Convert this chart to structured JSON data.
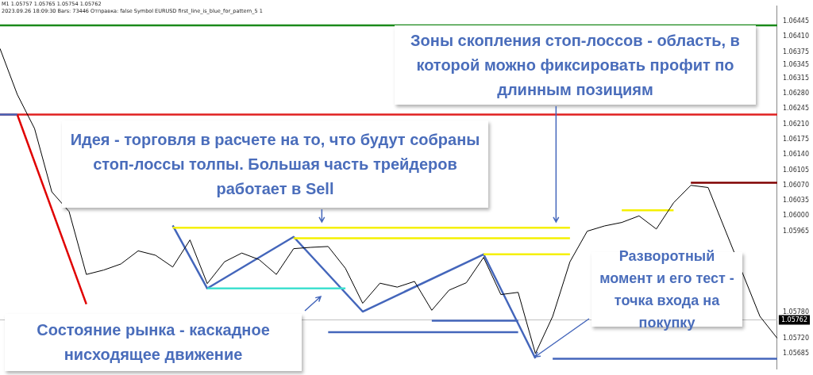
{
  "chart_data": {
    "type": "line",
    "ylim": [
      1.0565,
      1.0648
    ],
    "categories": [
      null,
      null,
      null,
      null,
      null,
      null,
      null,
      null,
      null,
      null,
      null,
      null,
      null,
      null,
      null,
      null,
      null,
      null,
      null,
      null,
      null,
      null,
      null,
      null,
      null,
      null,
      null,
      null,
      null,
      null,
      null,
      null,
      null,
      null,
      null,
      null,
      null,
      null,
      null,
      null,
      null,
      null,
      null,
      null,
      null,
      null
    ],
    "yticks": [
      1.06445,
      {
        "value": 1.0641,
        "label": "1.06410"
      },
      1.06375,
      1.06345,
      1.06315,
      {
        "value": 1.0628,
        "label": "1.06280"
      },
      1.06245,
      {
        "value": 1.0621,
        "label": "1.06210"
      },
      1.06175,
      {
        "value": 1.0614,
        "label": "1.06140"
      },
      1.06105,
      {
        "value": 1.0607,
        "label": "1.06070"
      },
      1.06035,
      {
        "value": 1.06,
        "label": "1.06000"
      },
      1.05965,
      {
        "value": 1.0578,
        "label": "1.05780"
      },
      {
        "value": 1.0572,
        "label": "1.05720"
      },
      1.05685
    ],
    "tick_labels": "y",
    "grid": false,
    "legend": false,
    "marker": "none",
    "line_style": "solid",
    "series": [
      {
        "color": "#000000",
        "values": [
          1.06383,
          1.06278,
          1.062,
          1.06055,
          1.0601,
          1.05866,
          1.05876,
          1.0589,
          1.0592,
          1.0591,
          1.05883,
          1.05945,
          1.05845,
          1.05895,
          1.05915,
          1.059,
          1.05866,
          1.05925,
          1.05928,
          1.0593,
          1.0588,
          1.058,
          1.05846,
          1.05837,
          1.0585,
          1.05784,
          1.0583,
          1.05847,
          1.05905,
          1.0582,
          1.05825,
          1.05685,
          1.0577,
          1.05895,
          1.05965,
          1.05977,
          1.05985,
          1.06,
          1.0597,
          1.0603,
          1.0607,
          1.06065,
          null,
          null,
          1.0577,
          1.0572
        ]
      },
      {
        "color": "#4466bb",
        "values": [
          1.06232,
          1.06232,
          null,
          null,
          null,
          null,
          null,
          null,
          null,
          null,
          null,
          null,
          null,
          null,
          null,
          null,
          null,
          null,
          null,
          null,
          null,
          null,
          null,
          null,
          null,
          null,
          null,
          null,
          null,
          null,
          null,
          null,
          null,
          null,
          null,
          null,
          null,
          null,
          null,
          null,
          null,
          null,
          null,
          null,
          null,
          null
        ]
      },
      {
        "color": "#e00000",
        "values": [
          null,
          1.06232,
          null,
          null,
          null,
          1.05798,
          null,
          null,
          null,
          null,
          null,
          null,
          null,
          null,
          null,
          null,
          null,
          null,
          null,
          null,
          null,
          null,
          null,
          null,
          null,
          null,
          null,
          null,
          null,
          null,
          null,
          null,
          null,
          null,
          null,
          null,
          null,
          null,
          null,
          null,
          null,
          null,
          null,
          null,
          null,
          null
        ]
      },
      {
        "color": "#f5f000",
        "values": [
          null,
          null,
          null,
          null,
          null,
          null,
          null,
          null,
          null,
          null,
          1.05973,
          null,
          null,
          null,
          null,
          null,
          null,
          null,
          null,
          null,
          null,
          null,
          null,
          null,
          null,
          null,
          null,
          null,
          null,
          null,
          null,
          null,
          null,
          1.05973,
          null,
          null,
          null,
          null,
          null,
          null,
          null,
          null,
          null,
          null,
          null,
          null
        ]
      },
      {
        "color": "#f5f000",
        "values": [
          null,
          null,
          null,
          null,
          null,
          null,
          null,
          null,
          null,
          null,
          null,
          null,
          null,
          null,
          null,
          null,
          null,
          1.05949,
          null,
          null,
          null,
          null,
          null,
          null,
          null,
          null,
          null,
          null,
          null,
          null,
          null,
          null,
          null,
          1.05949,
          null,
          null,
          null,
          null,
          null,
          null,
          null,
          null,
          null,
          null,
          null,
          null
        ]
      },
      {
        "color": "#f5f000",
        "values": [
          null,
          null,
          null,
          null,
          null,
          null,
          null,
          null,
          null,
          null,
          null,
          null,
          null,
          null,
          null,
          null,
          null,
          null,
          null,
          null,
          null,
          null,
          null,
          null,
          null,
          null,
          null,
          null,
          1.05912,
          null,
          null,
          null,
          null,
          1.05912,
          null,
          null,
          null,
          null,
          null,
          null,
          null,
          null,
          null,
          null,
          null,
          null
        ]
      },
      {
        "color": "#f5f000",
        "values": [
          null,
          null,
          null,
          null,
          null,
          null,
          null,
          null,
          null,
          null,
          null,
          null,
          null,
          null,
          null,
          null,
          null,
          null,
          null,
          null,
          null,
          null,
          null,
          null,
          null,
          null,
          null,
          null,
          null,
          null,
          null,
          null,
          null,
          null,
          null,
          null,
          1.06013,
          null,
          null,
          1.06013,
          null,
          null,
          null,
          null,
          null,
          null
        ]
      },
      {
        "color": "#800000",
        "values": [
          null,
          null,
          null,
          null,
          null,
          null,
          null,
          null,
          null,
          null,
          null,
          null,
          null,
          null,
          null,
          null,
          null,
          null,
          null,
          null,
          null,
          null,
          null,
          null,
          null,
          null,
          null,
          null,
          null,
          null,
          null,
          null,
          null,
          null,
          null,
          null,
          null,
          null,
          null,
          null,
          1.06076,
          null,
          null,
          null,
          null,
          1.06076
        ]
      },
      {
        "color": "#40e0d0",
        "values": [
          null,
          null,
          null,
          null,
          null,
          null,
          null,
          null,
          null,
          null,
          null,
          null,
          1.05834,
          null,
          null,
          null,
          null,
          null,
          null,
          null,
          1.05834,
          null,
          null,
          null,
          null,
          null,
          null,
          null,
          null,
          null,
          null,
          null,
          null,
          null,
          null,
          null,
          null,
          null,
          null,
          null,
          null,
          null,
          null,
          null,
          null,
          null
        ]
      },
      {
        "color": "#4466bb",
        "values": [
          null,
          null,
          null,
          null,
          null,
          null,
          null,
          null,
          null,
          null,
          null,
          null,
          null,
          null,
          null,
          null,
          null,
          null,
          null,
          null,
          null,
          null,
          null,
          null,
          null,
          1.0576,
          null,
          null,
          null,
          null,
          1.0576,
          null,
          null,
          null,
          null,
          null,
          null,
          null,
          null,
          null,
          null,
          null,
          null,
          null,
          null,
          null
        ]
      },
      {
        "color": "#4466bb",
        "values": [
          null,
          null,
          null,
          null,
          null,
          null,
          null,
          null,
          null,
          null,
          null,
          null,
          null,
          null,
          null,
          null,
          null,
          null,
          null,
          1.05734,
          null,
          null,
          null,
          null,
          null,
          null,
          null,
          null,
          null,
          null,
          1.05734,
          null,
          null,
          null,
          null,
          null,
          null,
          null,
          null,
          null,
          null,
          null,
          null,
          null,
          null,
          null
        ]
      },
      {
        "color": "#4466bb",
        "values": [
          null,
          null,
          null,
          null,
          null,
          null,
          null,
          null,
          null,
          null,
          null,
          null,
          null,
          null,
          null,
          null,
          null,
          null,
          null,
          null,
          null,
          null,
          null,
          null,
          null,
          null,
          null,
          null,
          null,
          null,
          null,
          null,
          1.05673,
          null,
          null,
          null,
          null,
          null,
          null,
          null,
          null,
          null,
          null,
          null,
          null,
          1.05673
        ]
      },
      {
        "color": "#4466bb",
        "values": [
          null,
          null,
          null,
          null,
          null,
          null,
          null,
          null,
          null,
          null,
          1.05978,
          null,
          1.05834,
          null,
          null,
          null,
          null,
          1.05952,
          null,
          null,
          null,
          1.05781,
          null,
          null,
          null,
          null,
          null,
          null,
          1.05912,
          null,
          null,
          1.05674,
          null,
          null,
          null,
          null,
          null,
          null,
          null,
          null,
          null,
          null,
          null,
          null,
          null,
          null
        ]
      }
    ],
    "ref_lines": [
      {
        "axis": "y",
        "value": 1.06436,
        "label": null,
        "color": "#1a8a1a"
      },
      {
        "axis": "y",
        "value": 1.06232,
        "label": null,
        "color": "#e02020"
      },
      {
        "axis": "y",
        "value": 1.05762,
        "label": "1.05762",
        "color": "#c0c0c0"
      }
    ],
    "annotations": [
      "M1 1.05757 1.05765 1.05754 1.05762",
      "2023.09.26 18:09:30 Bars: 73446 Отправка: false Symbol EURUSD first_line_is_blue_for_pattern_5 1",
      "Зоны скопления стоп-лоссов - область, в которой можно фиксировать профит по длинным позициям",
      "Идея - торговля в расчете на то, что будут собраны стоп-лоссы толпы. Большая часть трейдеров работает в Sell",
      "Разворотный момент и его тест - точка входа на покупку",
      "Состояние рынка - каскадное нисходящее движение"
    ]
  }
}
